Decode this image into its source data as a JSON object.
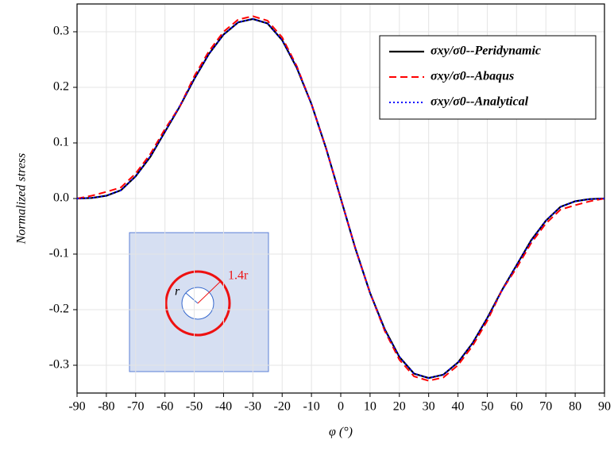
{
  "chart_data": {
    "type": "line",
    "x_label": "φ (°)",
    "y_label": "Normalized stress",
    "x": [
      -90,
      -85,
      -80,
      -75,
      -70,
      -65,
      -60,
      -55,
      -50,
      -45,
      -40,
      -35,
      -30,
      -25,
      -20,
      -15,
      -10,
      -5,
      0,
      5,
      10,
      15,
      20,
      25,
      30,
      35,
      40,
      45,
      50,
      55,
      60,
      65,
      70,
      75,
      80,
      85,
      90
    ],
    "series": [
      {
        "name": "σxy/σ0--Peridynamic",
        "color": "#000000",
        "dash": "none",
        "width": 2.2,
        "values": [
          0,
          0.001,
          0.005,
          0.015,
          0.04,
          0.075,
          0.12,
          0.165,
          0.215,
          0.26,
          0.295,
          0.317,
          0.323,
          0.315,
          0.285,
          0.235,
          0.17,
          0.09,
          0,
          -0.09,
          -0.17,
          -0.235,
          -0.285,
          -0.315,
          -0.323,
          -0.317,
          -0.295,
          -0.26,
          -0.215,
          -0.165,
          -0.12,
          -0.075,
          -0.04,
          -0.015,
          -0.005,
          -0.001,
          0
        ]
      },
      {
        "name": "σxy/σ0--Abaqus",
        "color": "#ff0000",
        "dash": "9 5",
        "width": 2,
        "values": [
          0,
          0.005,
          0.012,
          0.02,
          0.045,
          0.08,
          0.125,
          0.165,
          0.22,
          0.265,
          0.3,
          0.322,
          0.328,
          0.32,
          0.29,
          0.238,
          0.17,
          0.09,
          0,
          -0.09,
          -0.17,
          -0.238,
          -0.29,
          -0.32,
          -0.328,
          -0.322,
          -0.3,
          -0.265,
          -0.22,
          -0.165,
          -0.125,
          -0.08,
          -0.045,
          -0.02,
          -0.012,
          -0.005,
          0
        ]
      },
      {
        "name": "σxy/σ0--Analytical",
        "color": "#0000ff",
        "dash": "2 3",
        "width": 2,
        "values": [
          0,
          0.001,
          0.005,
          0.015,
          0.04,
          0.076,
          0.12,
          0.166,
          0.215,
          0.26,
          0.295,
          0.317,
          0.323,
          0.315,
          0.285,
          0.236,
          0.17,
          0.09,
          0,
          -0.09,
          -0.17,
          -0.236,
          -0.285,
          -0.315,
          -0.323,
          -0.317,
          -0.295,
          -0.26,
          -0.215,
          -0.166,
          -0.12,
          -0.076,
          -0.04,
          -0.015,
          -0.005,
          -0.001,
          0
        ]
      }
    ],
    "xlim": [
      -90,
      90
    ],
    "xticks": [
      -90,
      -80,
      -70,
      -60,
      -50,
      -40,
      -30,
      -20,
      -10,
      0,
      10,
      20,
      30,
      40,
      50,
      60,
      70,
      80,
      90
    ],
    "ylim": [
      -0.35,
      0.35
    ],
    "yticks": [
      -0.3,
      -0.2,
      -0.1,
      {
        "value": 0,
        "label": "0.0"
      },
      0.1,
      0.2,
      0.3
    ],
    "grid": true,
    "legend": "top-right",
    "inset_labels": [
      "r",
      "1.4r"
    ]
  }
}
